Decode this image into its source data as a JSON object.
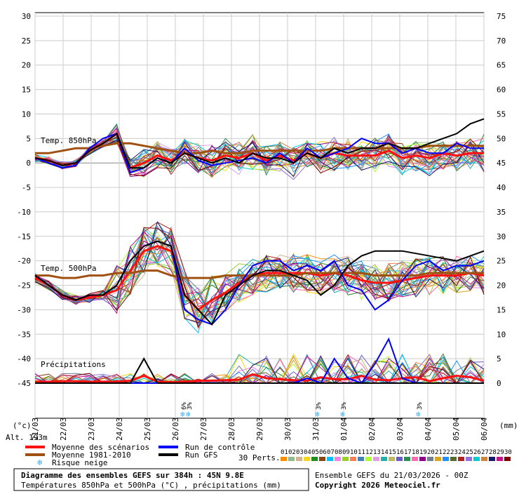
{
  "chart_data": {
    "type": "line",
    "x_dates": [
      "21/03",
      "22/03",
      "23/03",
      "24/03",
      "25/03",
      "26/03",
      "27/03",
      "28/03",
      "29/03",
      "30/03",
      "31/03",
      "01/04",
      "02/04",
      "03/04",
      "04/04",
      "05/04",
      "06/04"
    ],
    "left_axis": {
      "label": "(°c)",
      "ticks": [
        30,
        25,
        20,
        15,
        10,
        5,
        0,
        -5,
        -10,
        -15,
        -20,
        -25,
        -30,
        -35,
        -40,
        -45
      ],
      "ylim": [
        -45,
        30
      ]
    },
    "right_axis": {
      "label": "(mm)",
      "ticks": [
        75,
        70,
        65,
        60,
        55,
        50,
        45,
        40,
        35,
        30,
        25,
        20,
        15,
        10,
        5,
        0
      ],
      "ylim": [
        0,
        75
      ]
    },
    "labels": {
      "t850": "Temp. 850hPa",
      "t500": "Temp. 500hPa",
      "precip": "Précipitations"
    },
    "altitude": "Alt. 193m",
    "snow_markers": [
      {
        "date_index": 5.3,
        "text": "6%"
      },
      {
        "date_index": 5.5,
        "text": "3%"
      },
      {
        "date_index": 10.1,
        "text": "3%"
      },
      {
        "date_index": 11,
        "text": "3%"
      },
      {
        "date_index": 13.7,
        "text": "3%"
      }
    ],
    "series": [
      {
        "name": "Moyenne des scénarios",
        "color": "#ff1010",
        "t850": [
          1,
          0.5,
          -0.5,
          0,
          2.5,
          4,
          6,
          -1,
          0,
          1.5,
          0.5,
          2,
          1,
          0.5,
          1.5,
          1,
          2,
          0.5,
          1.5,
          0.5,
          2,
          1,
          2,
          1.5,
          1.5,
          1.5,
          2.5,
          1,
          1.5,
          1,
          2,
          1.5,
          2,
          2
        ],
        "t500": [
          -23.5,
          -25,
          -27,
          -28,
          -27.5,
          -27,
          -26,
          -22,
          -18,
          -17,
          -18,
          -27,
          -30,
          -28,
          -26.5,
          -24.5,
          -23,
          -22.5,
          -22.5,
          -22.5,
          -22.5,
          -23,
          -22.5,
          -23,
          -24,
          -24.5,
          -24.5,
          -24,
          -23.5,
          -23,
          -23,
          -23,
          -22.5,
          -23
        ],
        "precip": [
          0.3,
          0.3,
          0.4,
          0.4,
          0.3,
          0.3,
          0.3,
          0.5,
          1.5,
          0.3,
          0.2,
          0.3,
          0.5,
          0.5,
          0.6,
          0.7,
          1.8,
          1,
          0.8,
          0.6,
          0.5,
          1.2,
          0.8,
          0.8,
          1.5,
          0.7,
          0.6,
          1,
          1.2,
          0.4,
          1,
          1.5,
          1.2,
          0.5
        ]
      },
      {
        "name": "Moyenne 1981-2010",
        "color": "#a05010",
        "t850": [
          2,
          2,
          2.5,
          3,
          3,
          3.5,
          4,
          4,
          3.5,
          3,
          2.5,
          2,
          2,
          2.5,
          2,
          2,
          2.5,
          2.5,
          2.5,
          2.5,
          2.5,
          2.5,
          3,
          3,
          3,
          3,
          3,
          3,
          3,
          3.5,
          3.5,
          3.5,
          3.5,
          3.5
        ],
        "t500": [
          -23,
          -23,
          -23.5,
          -23.5,
          -23,
          -23,
          -22.5,
          -22.5,
          -22,
          -22,
          -23,
          -23.5,
          -23.5,
          -23.5,
          -23,
          -23,
          -23,
          -23,
          -23,
          -23,
          -22.5,
          -22.5,
          -22.5,
          -22.5,
          -22.5,
          -23,
          -23,
          -23,
          -23,
          -22.5,
          -22.5,
          -22.5,
          -22.5,
          -22.5
        ]
      },
      {
        "name": "Run de contrôle",
        "color": "#0000ff",
        "t850": [
          1,
          0,
          -1,
          -0.5,
          3,
          5,
          6,
          -2,
          -1,
          1,
          0,
          3,
          0.5,
          -0.5,
          0,
          0.5,
          1,
          0,
          2,
          0,
          3,
          1,
          2,
          3,
          5,
          4,
          4,
          2,
          3,
          2,
          2,
          4,
          3,
          3
        ],
        "t500": [
          -23,
          -25,
          -27,
          -28,
          -27,
          -27,
          -25,
          -20,
          -17,
          -16,
          -17,
          -30,
          -32,
          -33,
          -30,
          -25,
          -21,
          -20,
          -20,
          -22,
          -21,
          -22,
          -20,
          -25,
          -26,
          -30,
          -28,
          -24,
          -21,
          -20,
          -22,
          -21,
          -21,
          -20
        ],
        "precip": [
          0,
          0,
          0,
          0,
          0,
          0,
          0,
          0,
          0,
          0,
          0,
          0,
          0,
          0,
          0,
          0,
          0,
          0,
          0,
          0,
          1,
          0,
          5,
          1,
          0,
          4,
          9,
          1,
          0,
          0,
          0,
          0,
          0,
          0
        ]
      },
      {
        "name": "Run GFS",
        "color": "#000000",
        "t850": [
          1,
          0.5,
          -0.5,
          0,
          2.5,
          4,
          6,
          -1,
          -1,
          1,
          0,
          2,
          1,
          0,
          1,
          0,
          2,
          1,
          1,
          0,
          2,
          1,
          3,
          2,
          3,
          3,
          4,
          3,
          3,
          4,
          5,
          6,
          8,
          9
        ],
        "t500": [
          -23,
          -25,
          -27,
          -28,
          -27,
          -27,
          -25,
          -20,
          -17,
          -16,
          -17,
          -27,
          -30,
          -33,
          -27,
          -25,
          -23,
          -22,
          -22,
          -23,
          -24,
          -27,
          -25,
          -21,
          -19,
          -18,
          -18,
          -18,
          -18.5,
          -19,
          -19.5,
          -20,
          -19,
          -18
        ],
        "precip": [
          0,
          0,
          0,
          0,
          0,
          0,
          0,
          0,
          5,
          0,
          0,
          0,
          0,
          0,
          0,
          0,
          0,
          0,
          0,
          0,
          0,
          0,
          0,
          0,
          0,
          0,
          0,
          0,
          0,
          0,
          0,
          0,
          0,
          0
        ]
      }
    ],
    "perts_label": "30 Perts.",
    "perts_numbers": [
      "01",
      "02",
      "03",
      "04",
      "05",
      "06",
      "07",
      "08",
      "09",
      "10",
      "11",
      "12",
      "13",
      "14",
      "15",
      "16",
      "17",
      "18",
      "19",
      "20",
      "21",
      "22",
      "23",
      "24",
      "25",
      "26",
      "27",
      "28",
      "29",
      "30"
    ],
    "perts_colors": [
      "#ff8c00",
      "#8fbc8f",
      "#d2b48c",
      "#ffd700",
      "#228b22",
      "#8b4513",
      "#00bfff",
      "#ee82ee",
      "#9acd32",
      "#ff7f50",
      "#4682b4",
      "#adff2f",
      "#dda0dd",
      "#20b2aa",
      "#bdb76b",
      "#6a5acd",
      "#2e8b57",
      "#ff69b4",
      "#8b008b",
      "#708090",
      "#daa520",
      "#1e90ff",
      "#556b2f",
      "#b22222",
      "#9370db",
      "#00ced1",
      "#cd853f",
      "#191970",
      "#c71585",
      "#800000"
    ]
  },
  "legend": {
    "items": [
      {
        "text": "Moyenne des scénarios",
        "color": "#ff1010"
      },
      {
        "text": "Moyenne 1981-2010",
        "color": "#a05010"
      },
      {
        "text": "Risque neige",
        "color": "#4aa8e0"
      },
      {
        "text": "Run de contrôle",
        "color": "#0000ff"
      },
      {
        "text": "Run GFS",
        "color": "#000000"
      }
    ]
  },
  "footer": {
    "title": "Diagramme des ensembles GEFS sur 384h : 45N 9.8E",
    "subtitle": "Températures 850hPa et 500hPa (°C) , précipitations (mm)",
    "run": "Ensemble GEFS du 21/03/2026 - 00Z",
    "copyright": "Copyright 2026 Meteociel.fr"
  }
}
